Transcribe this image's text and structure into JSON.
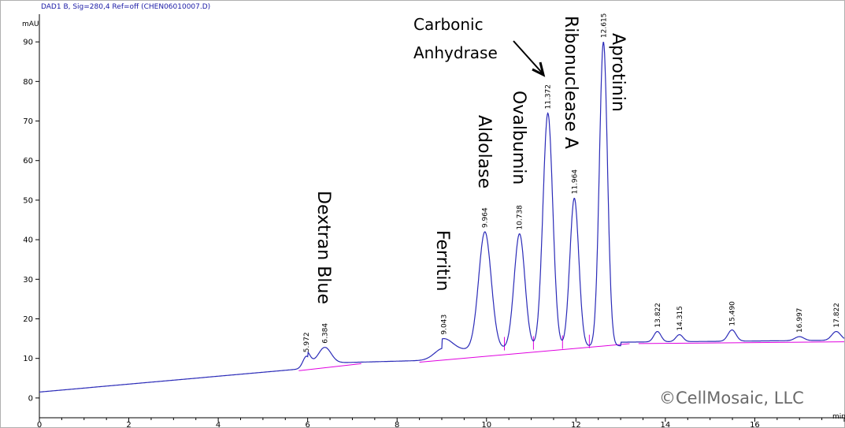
{
  "header": "DAD1 B, Sig=280,4 Ref=off (CHEN06010007.D)",
  "y_unit": "mAU",
  "x_unit": "min",
  "copyright": "©CellMosaic, LLC",
  "colors": {
    "trace": "#2b2bb8",
    "baseline": "#e000e0",
    "axis": "#000000",
    "header": "#1a1aa6"
  },
  "chart_data": {
    "type": "line",
    "title": "",
    "xlabel": "min",
    "ylabel": "mAU",
    "xlim": [
      0,
      18
    ],
    "ylim": [
      -5,
      97
    ],
    "x_ticks": [
      0,
      2,
      4,
      6,
      8,
      10,
      12,
      14,
      16
    ],
    "y_ticks": [
      0,
      10,
      20,
      30,
      40,
      50,
      60,
      70,
      80,
      90
    ],
    "grid": false,
    "baseline_start": 1.5,
    "baseline_slope": 1.0,
    "peaks": [
      {
        "rt": 5.972,
        "rt_label": "5.972",
        "height": 10.5,
        "width": 0.08
      },
      {
        "rt": 6.384,
        "rt_label": "6.384",
        "height": 12.8,
        "width": 0.14
      },
      {
        "rt": 9.043,
        "rt_label": "9.043",
        "height": 15,
        "width": 0.2
      },
      {
        "rt": 9.964,
        "rt_label": "9.964",
        "height": 42,
        "width": 0.14
      },
      {
        "rt": 10.738,
        "rt_label": "10.738",
        "height": 41.5,
        "width": 0.12
      },
      {
        "rt": 11.372,
        "rt_label": "11.372",
        "height": 72,
        "width": 0.11
      },
      {
        "rt": 11.964,
        "rt_label": "11.964",
        "height": 50.5,
        "width": 0.1
      },
      {
        "rt": 12.615,
        "rt_label": "12.615",
        "height": 90,
        "width": 0.09
      },
      {
        "rt": 13.822,
        "rt_label": "13.822",
        "height": 16.8,
        "width": 0.08
      },
      {
        "rt": 14.315,
        "rt_label": "14.315",
        "height": 16,
        "width": 0.08
      },
      {
        "rt": 15.49,
        "rt_label": "15.490",
        "height": 17.2,
        "width": 0.09
      },
      {
        "rt": 16.997,
        "rt_label": "16.997",
        "height": 15.5,
        "width": 0.1
      },
      {
        "rt": 17.822,
        "rt_label": "17.822",
        "height": 16.8,
        "width": 0.1
      }
    ],
    "annotations": [
      {
        "text": "Dextran Blue",
        "x": 6.384,
        "y": 12.8
      },
      {
        "text": "Ferritin",
        "x": 9.043,
        "y": 15
      },
      {
        "text": "Aldolase",
        "x": 9.964,
        "y": 42
      },
      {
        "text": "Ovalbumin",
        "x": 10.738,
        "y": 41.5
      },
      {
        "text": "Carbonic Anhydrase",
        "x": 11.372,
        "y": 72
      },
      {
        "text": "Ribonuclease A",
        "x": 11.964,
        "y": 50.5
      },
      {
        "text": "Aprotinin",
        "x": 12.615,
        "y": 90
      }
    ]
  }
}
